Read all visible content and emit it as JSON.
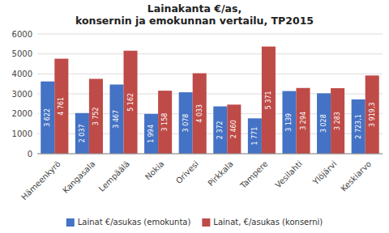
{
  "chart_data": {
    "type": "bar",
    "title": "Lainakanta €/as,\nkonsernin ja emokunnan vertailu, TP2015",
    "categories": [
      "Hämeenkyrö",
      "Kangasala",
      "Lempäälä",
      "Nokia",
      "Orivesi",
      "Pirkkala",
      "Tampere",
      "Vesilahti",
      "Ylöjärvi",
      "Keskiarvo"
    ],
    "series": [
      {
        "name": "Lainat €/asukas (emokunta)",
        "color": "#4472C4",
        "values": [
          3622,
          2037,
          3467,
          1994,
          3078,
          2372,
          1771,
          3139,
          3028,
          2723.1
        ],
        "value_labels": [
          "3 622",
          "2 037",
          "3 467",
          "1 994",
          "3 078",
          "2 372",
          "1 771",
          "3 139",
          "3 028",
          "2 723,1"
        ]
      },
      {
        "name": "Lainat, €/asukas (konserni)",
        "color": "#BE4B48",
        "values": [
          4761,
          3752,
          5162,
          3158,
          4033,
          2460,
          5371,
          3294,
          3283,
          3919.3
        ],
        "value_labels": [
          "4 761",
          "3 752",
          "5 162",
          "3 158",
          "4 033",
          "2 460",
          "5 371",
          "3 294",
          "3 283",
          "3 919,3"
        ]
      }
    ],
    "ylim": [
      0,
      6000
    ],
    "yticks": [
      0,
      1000,
      2000,
      3000,
      4000,
      5000,
      6000
    ],
    "grid": true,
    "data_labels": true,
    "legend": "bottom"
  }
}
